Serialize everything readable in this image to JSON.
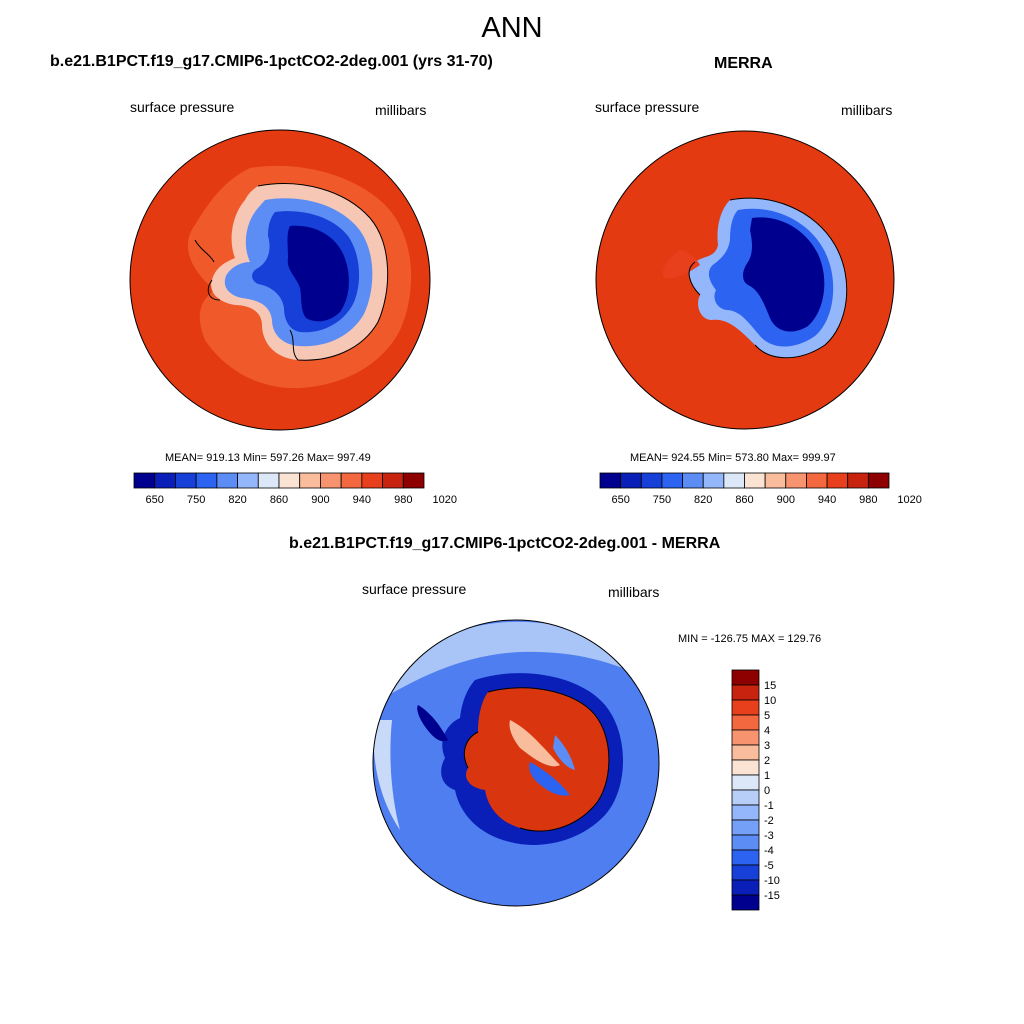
{
  "season": "ANN",
  "panels": [
    {
      "title": "b.e21.B1PCT.f19_g17.CMIP6-1pctCO2-2deg.001 (yrs 31-70)",
      "variable": "surface pressure",
      "units": "millibars",
      "stats": "MEAN= 919.13  Min= 597.26  Max= 997.49"
    },
    {
      "title": "MERRA",
      "variable": "surface pressure",
      "units": "millibars",
      "stats": "MEAN= 924.55  Min= 573.80  Max= 999.97"
    },
    {
      "title": "b.e21.B1PCT.f19_g17.CMIP6-1pctCO2-2deg.001 - MERRA",
      "variable": "surface pressure",
      "units": "millibars",
      "stats": "MIN = -126.75 MAX = 129.76"
    }
  ],
  "abs_colorbar": {
    "colors": [
      "#00008f",
      "#0a1fb8",
      "#1640d8",
      "#2c63f0",
      "#5b8df5",
      "#94b6fa",
      "#dce8f8",
      "#fbe3d4",
      "#f9bc9c",
      "#f7946f",
      "#f4683f",
      "#e8401c",
      "#c7230f",
      "#8e0000"
    ],
    "tick_labels": [
      "650",
      "750",
      "820",
      "860",
      "900",
      "940",
      "980",
      "1020"
    ]
  },
  "diff_colorbar": {
    "colors": [
      "#8e0000",
      "#c7230f",
      "#e8401c",
      "#f4683f",
      "#f7946f",
      "#f9bc9c",
      "#fbe3d4",
      "#dce8f8",
      "#b7cff8",
      "#94b6fa",
      "#74a0f7",
      "#5b8df5",
      "#2c63f0",
      "#1640d8",
      "#0a1fb8",
      "#00008f"
    ],
    "tick_labels": [
      "15",
      "10",
      "5",
      "4",
      "3",
      "2",
      "1",
      "0",
      "-1",
      "-2",
      "-3",
      "-4",
      "-5",
      "-10",
      "-15"
    ]
  },
  "map_colors": {
    "ocean_warm": "#e33a12",
    "ocean_ring": "#f05a2a",
    "diff_ocean": "#4e7ef0",
    "diff_light": "#a9c4f7",
    "diff_pos": "#d9360f"
  }
}
